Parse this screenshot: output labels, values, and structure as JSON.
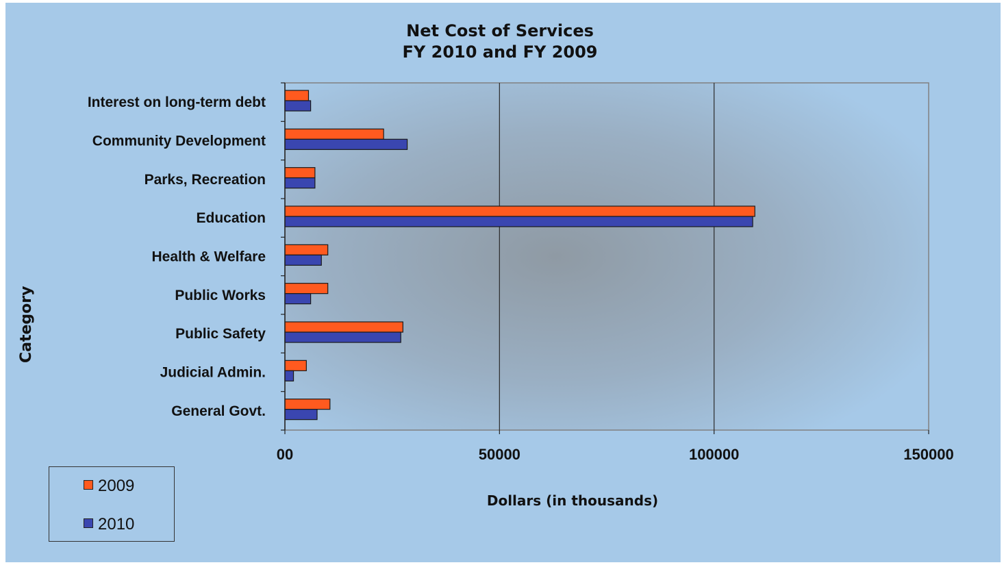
{
  "chart_data": {
    "type": "bar",
    "orientation": "horizontal",
    "title": [
      "Net Cost of Services",
      "FY 2010 and FY 2009"
    ],
    "xlabel": "Dollars (in thousands)",
    "ylabel": "Category",
    "xlim": [
      0,
      150000
    ],
    "x_ticks": [
      "00",
      "50000",
      "100000",
      "150000"
    ],
    "categories": [
      "Interest on long-term debt",
      "Community Development",
      "Parks, Recreation",
      "Education",
      "Health & Welfare",
      "Public Works",
      "Public Safety",
      "Judicial Admin.",
      "General Govt."
    ],
    "series": [
      {
        "name": "2009",
        "color": "#ff5a1f",
        "values": [
          5500,
          23000,
          7000,
          109500,
          10000,
          10000,
          27500,
          5000,
          10500
        ]
      },
      {
        "name": "2010",
        "color": "#3a46b0",
        "values": [
          6000,
          28500,
          7000,
          109000,
          8500,
          6000,
          27000,
          2000,
          7500
        ]
      }
    ],
    "grid": "vertical",
    "legend_position": "bottom-left"
  }
}
